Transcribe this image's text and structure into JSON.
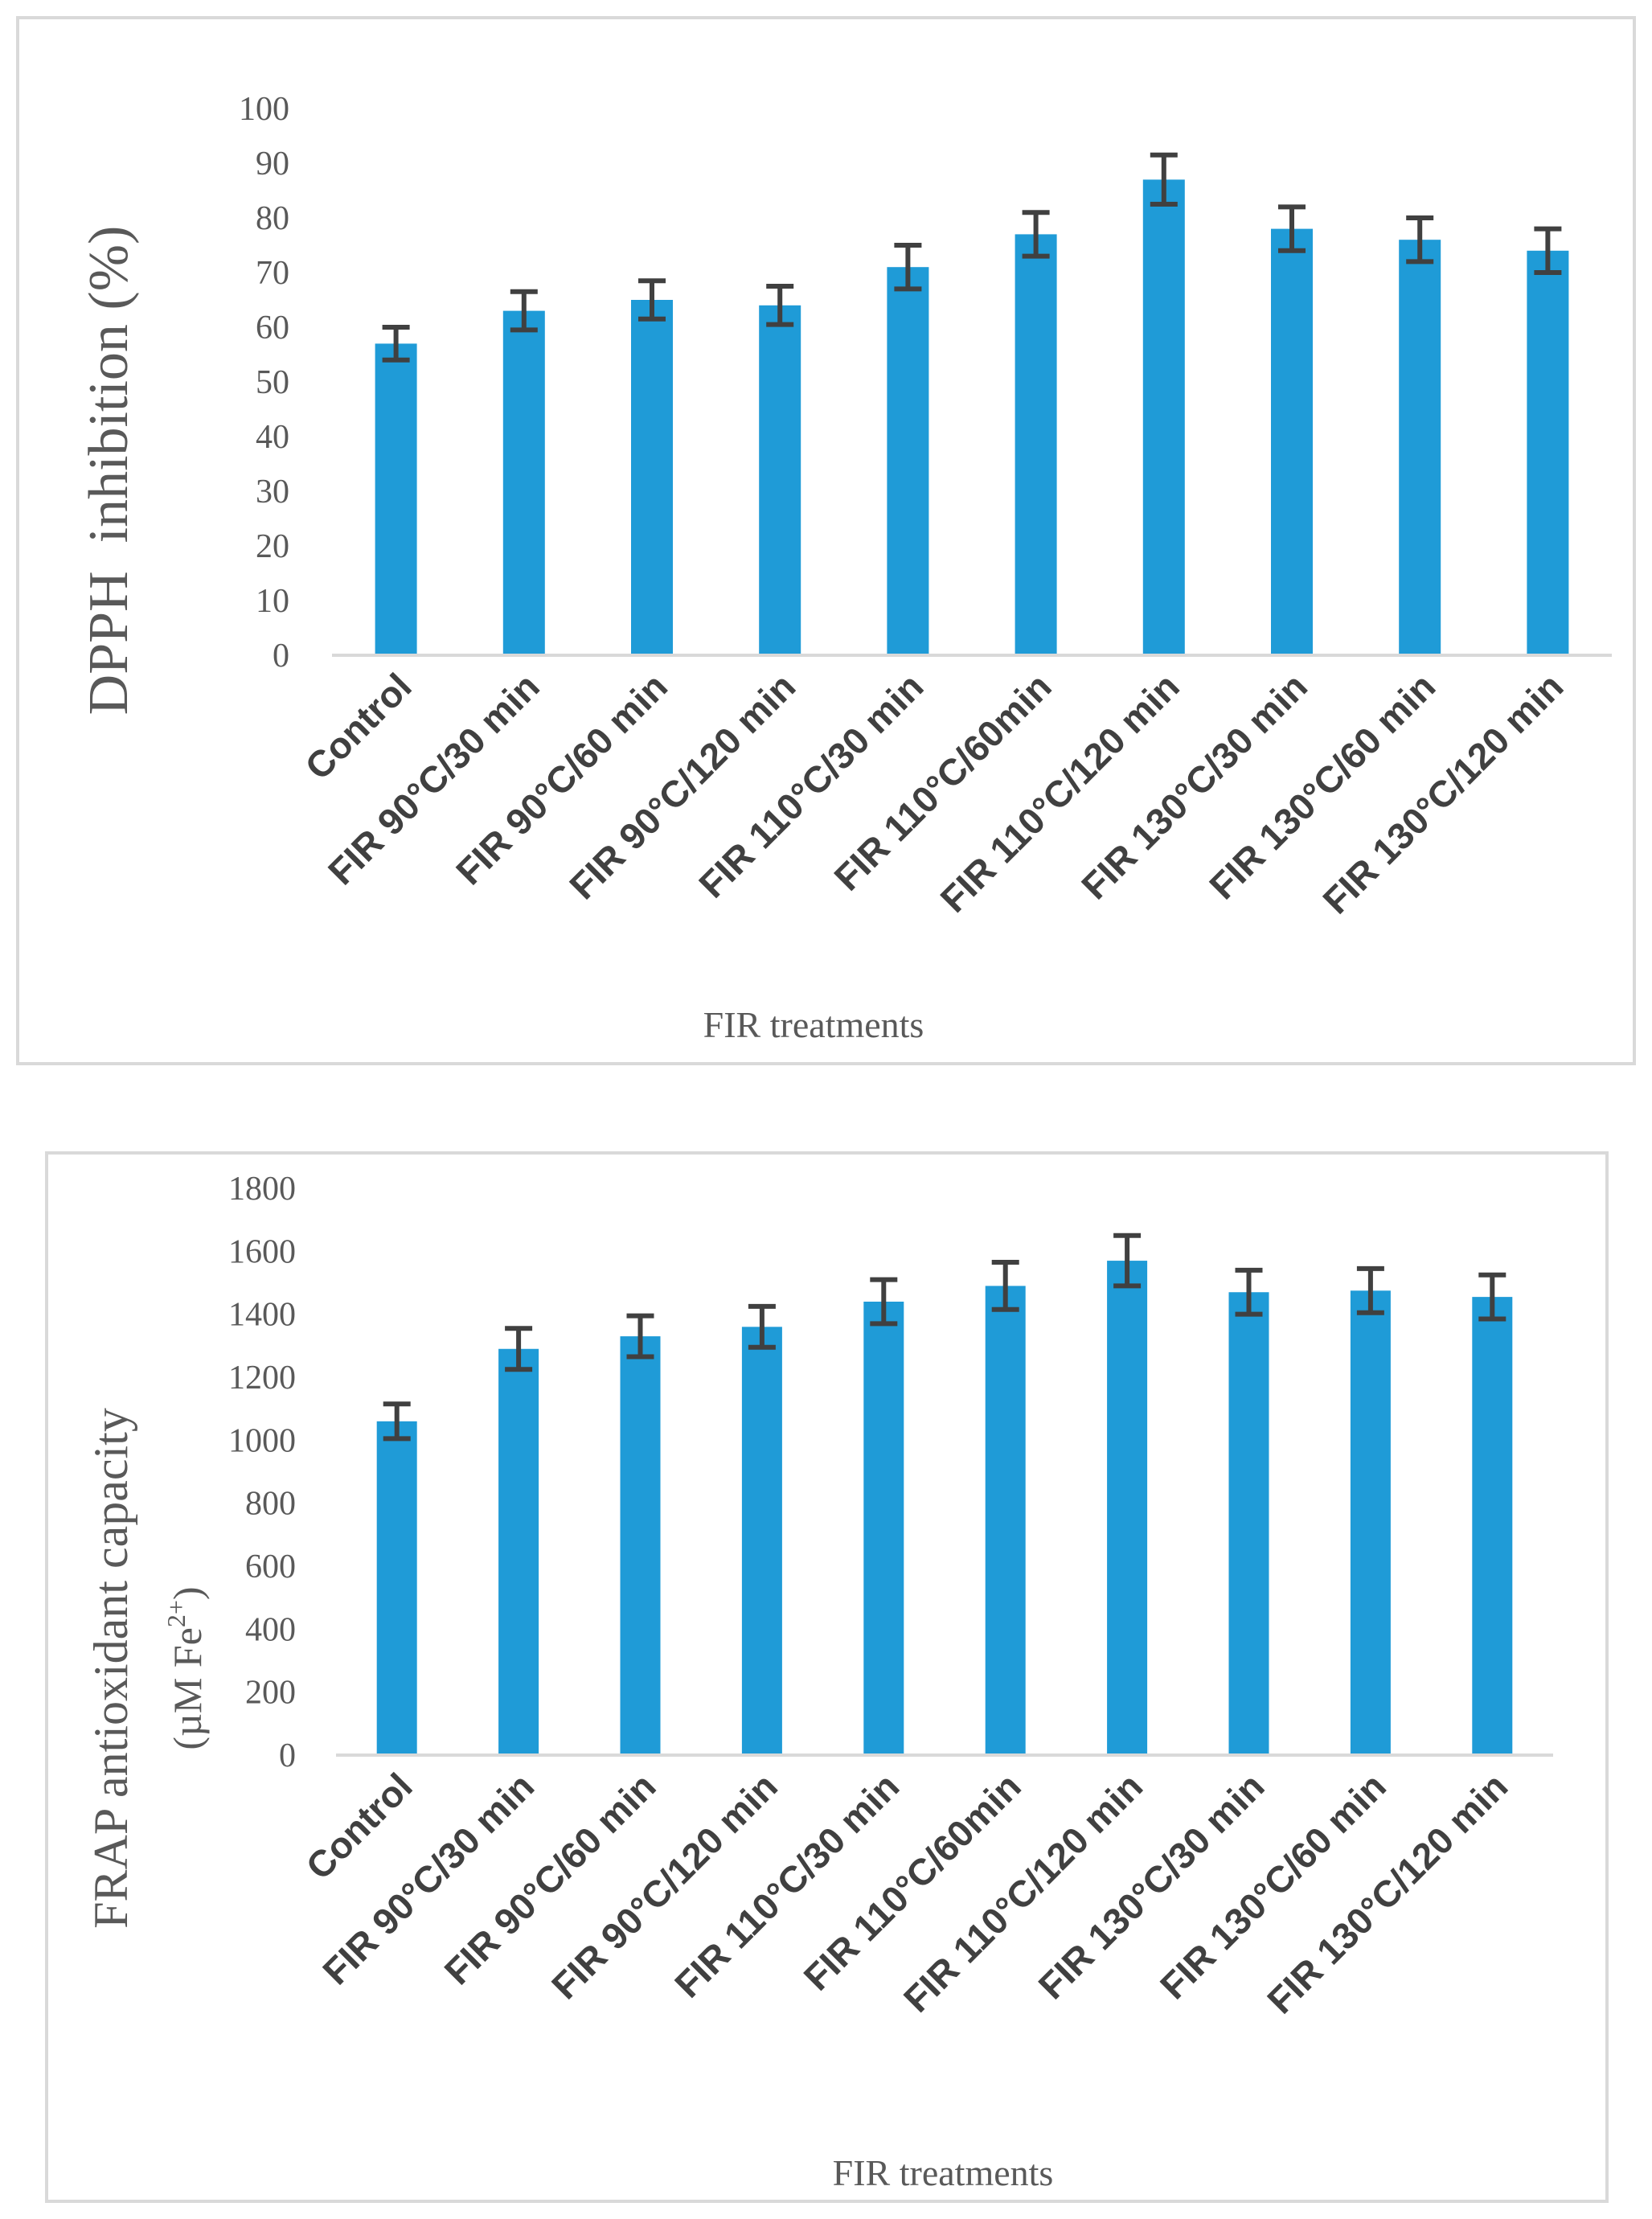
{
  "chart_data": [
    {
      "type": "bar",
      "title": "",
      "xlabel": "FIR treatments",
      "ylabel": "DPPH  inhibition (%)",
      "ylim": [
        0,
        100
      ],
      "yticks": [
        0,
        10,
        20,
        30,
        40,
        50,
        60,
        70,
        80,
        90,
        100
      ],
      "categories": [
        "Control",
        "FIR 90°C/30 min",
        "FIR 90°C/60 min",
        "FIR 90°C/120 min",
        "FIR 110°C/30 min",
        "FIR 110°C/60min",
        "FIR 110°C/120 min",
        "FIR 130°C/30 min",
        "FIR 130°C/60 min",
        "FIR 130°C/120 min"
      ],
      "values": [
        57,
        63,
        65,
        64,
        71,
        77,
        87,
        78,
        76,
        74
      ],
      "errors": [
        3,
        3.5,
        3.5,
        3.5,
        4,
        4,
        4.5,
        4,
        4,
        4
      ],
      "bar_color": "#1f9bd7",
      "error_color": "#404040",
      "grid": false
    },
    {
      "type": "bar",
      "title": "",
      "xlabel": "FIR treatments",
      "ylabel": "FRAP antioxidant capacity",
      "ylabel_line2_prefix": "(µM Fe",
      "ylabel_line2_sup": "2+",
      "ylabel_line2_suffix": ")",
      "ylim": [
        0,
        1800
      ],
      "yticks": [
        0,
        200,
        400,
        600,
        800,
        1000,
        1200,
        1400,
        1600,
        1800
      ],
      "categories": [
        "Control",
        "FIR 90°C/30 min",
        "FIR 90°C/60 min",
        "FIR 90°C/120 min",
        "FIR 110°C/30 min",
        "FIR 110°C/60min",
        "FIR 110°C/120 min",
        "FIR 130°C/30 min",
        "FIR 130°C/60 min",
        "FIR 130°C/120 min"
      ],
      "values": [
        1060,
        1290,
        1330,
        1360,
        1440,
        1490,
        1570,
        1470,
        1475,
        1455
      ],
      "errors": [
        55,
        65,
        65,
        65,
        70,
        75,
        80,
        70,
        70,
        70
      ],
      "bar_color": "#1f9bd7",
      "error_color": "#404040",
      "grid": false
    }
  ]
}
